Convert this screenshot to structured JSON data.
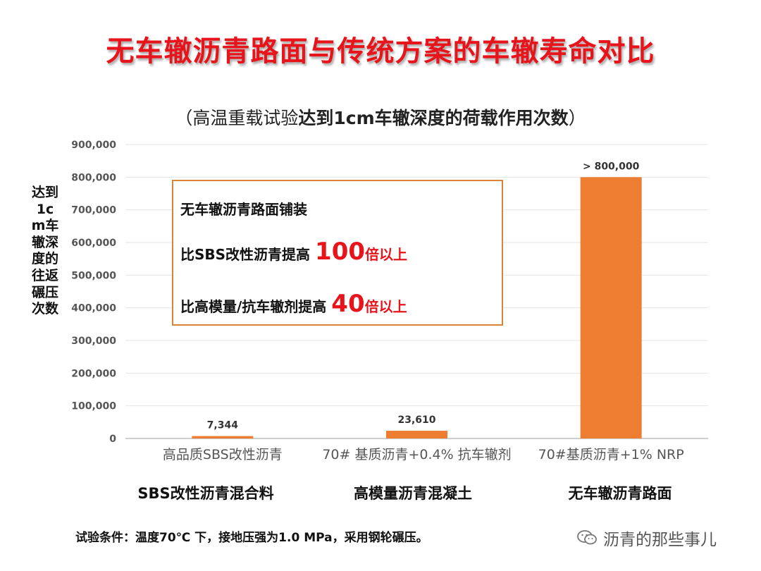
{
  "title": "无车辙沥青路面与传统方案的车辙寿命对比",
  "subtitle_prefix": "（高温重载试验",
  "subtitle_bold": "达到1cm车辙深度的荷载作用次数",
  "subtitle_suffix": "）",
  "ylabel": "达到1cm车辙深度的往返碾压次数",
  "groups": [
    "SBS改性沥青混合料",
    "高模量沥青混凝土",
    "无车辙沥青路面"
  ],
  "callout": {
    "line1": "无车辙沥青路面铺装",
    "line2_prefix": "比SBS改性沥青提高",
    "line2_number": "100",
    "line2_suffix": "倍以上",
    "line3_prefix": "比高模量/抗车辙剂提高",
    "line3_number": "40",
    "line3_suffix": "倍以上"
  },
  "footnote": "试验条件：温度70℃ 下，接地压强为1.0 MPa，采用钢轮碾压。",
  "watermark": "沥青的那些事儿",
  "colors": {
    "bar": "#ed7d31",
    "title": "#e8141b",
    "callout_border": "#d9843a"
  },
  "chart_data": {
    "type": "bar",
    "categories": [
      "高品质SBS改性沥青",
      "70# 基质沥青+0.4% 抗车辙剂",
      "70#基质沥青+1% NRP"
    ],
    "values": [
      7344,
      23610,
      800000
    ],
    "value_labels": [
      "7,344",
      "23,610",
      "> 800,000"
    ],
    "yticks": [
      "0",
      "100,000",
      "200,000",
      "300,000",
      "400,000",
      "500,000",
      "600,000",
      "700,000",
      "800,000",
      "900,000"
    ],
    "ylim": [
      0,
      900000
    ],
    "grid": true
  }
}
